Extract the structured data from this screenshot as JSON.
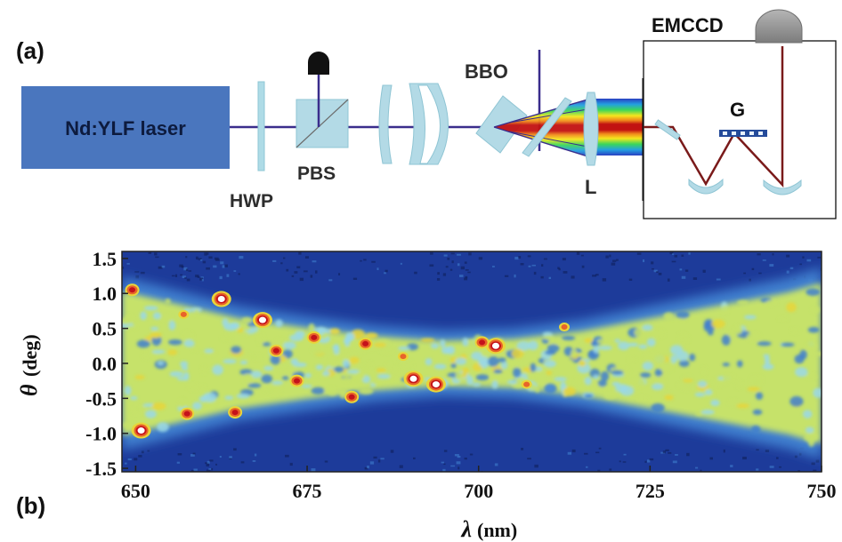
{
  "panel_a": {
    "label": "(a)",
    "laser_label": "Nd:YLF laser",
    "hwp_label": "HWP",
    "pbs_label": "PBS",
    "bbo_label": "BBO",
    "lens_label": "L",
    "grating_label": "G",
    "camera_label": "EMCCD"
  },
  "panel_b": {
    "label": "(b)",
    "colormap": [
      "#1d3b9a",
      "#3f7fcf",
      "#9ad8e8",
      "#c6e26a",
      "#e8d53a",
      "#e8642a",
      "#c4121b",
      "#ffffff"
    ]
  },
  "chart_data": {
    "type": "heatmap",
    "xlabel_symbol": "λ",
    "xlabel_unit": "(nm)",
    "ylabel_symbol": "θ",
    "ylabel_unit": "(deg)",
    "xlim": [
      648,
      750
    ],
    "ylim": [
      -1.55,
      1.6
    ],
    "x_ticks": [
      "650",
      "675",
      "700",
      "725",
      "750"
    ],
    "y_ticks": [
      "1.5",
      "1.0",
      "0.5",
      "0.0",
      "-0.5",
      "-1.0",
      "-1.5"
    ],
    "x_tick_values": [
      650,
      675,
      700,
      725,
      750
    ],
    "y_tick_values": [
      1.5,
      1.0,
      0.5,
      0.0,
      -0.5,
      -1.0,
      -1.5
    ],
    "band_half_width_deg": [
      [
        648,
        1.12
      ],
      [
        655,
        0.95
      ],
      [
        665,
        0.7
      ],
      [
        675,
        0.55
      ],
      [
        685,
        0.42
      ],
      [
        695,
        0.35
      ],
      [
        705,
        0.38
      ],
      [
        715,
        0.5
      ],
      [
        725,
        0.7
      ],
      [
        735,
        0.9
      ],
      [
        745,
        1.1
      ],
      [
        750,
        1.25
      ]
    ],
    "hot_spots": [
      {
        "x": 650.8,
        "y": -0.96,
        "level": "saturated"
      },
      {
        "x": 662.5,
        "y": 0.92,
        "level": "saturated"
      },
      {
        "x": 668.5,
        "y": 0.62,
        "level": "saturated"
      },
      {
        "x": 690.5,
        "y": -0.22,
        "level": "saturated"
      },
      {
        "x": 693.8,
        "y": -0.3,
        "level": "saturated"
      },
      {
        "x": 702.5,
        "y": 0.25,
        "level": "saturated"
      },
      {
        "x": 700.5,
        "y": 0.3,
        "level": "high"
      },
      {
        "x": 649.5,
        "y": 1.05,
        "level": "high"
      },
      {
        "x": 664.5,
        "y": -0.7,
        "level": "high"
      },
      {
        "x": 657.5,
        "y": -0.72,
        "level": "high"
      },
      {
        "x": 670.5,
        "y": 0.18,
        "level": "high"
      },
      {
        "x": 673.5,
        "y": -0.25,
        "level": "high"
      },
      {
        "x": 681.5,
        "y": -0.48,
        "level": "high"
      },
      {
        "x": 683.5,
        "y": 0.28,
        "level": "high"
      },
      {
        "x": 676.0,
        "y": 0.37,
        "level": "high"
      },
      {
        "x": 657.0,
        "y": 0.7,
        "level": "medium"
      },
      {
        "x": 712.5,
        "y": 0.52,
        "level": "medium"
      },
      {
        "x": 707.0,
        "y": -0.3,
        "level": "medium"
      },
      {
        "x": 689.0,
        "y": 0.1,
        "level": "medium"
      }
    ]
  }
}
